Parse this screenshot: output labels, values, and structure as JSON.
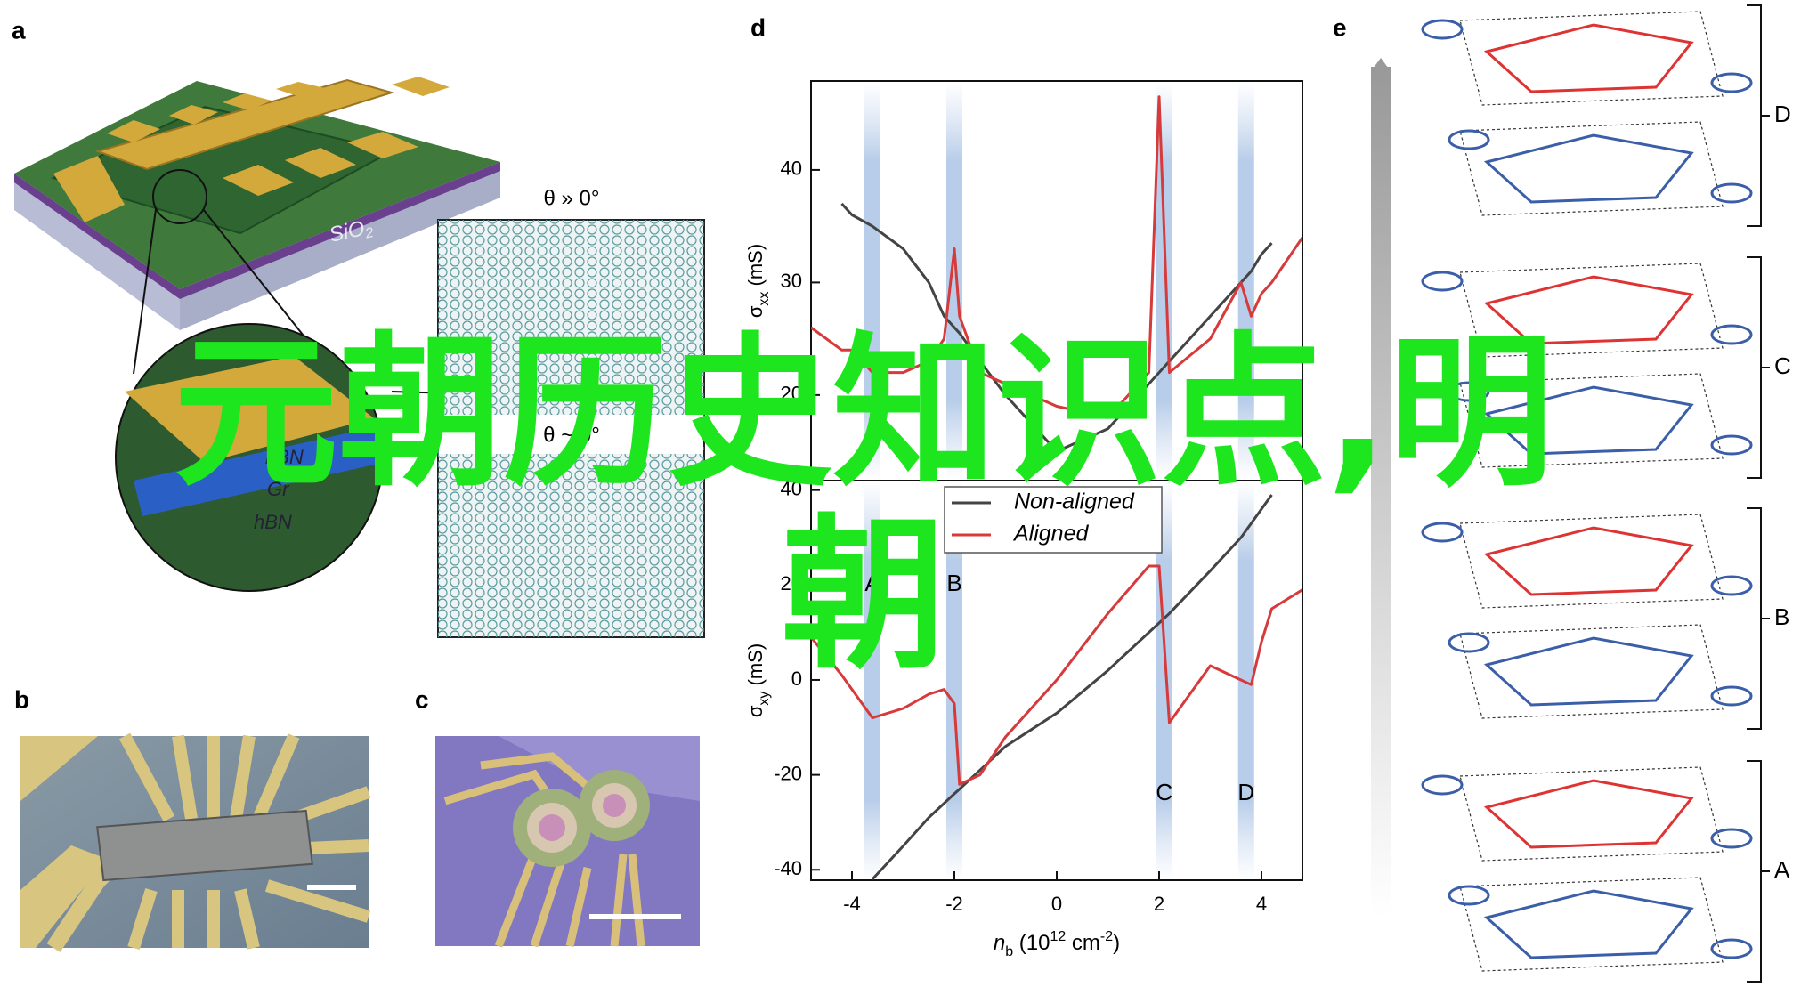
{
  "panel_labels": [
    "a",
    "b",
    "c",
    "d",
    "e"
  ],
  "panel_a": {
    "substrate": {
      "text": "SiO",
      "sub": "2"
    },
    "layers": [
      "hBN",
      "Gr",
      "hBN"
    ],
    "inset_top": "θ » 0°",
    "inset_bottom": "θ ~ 0°"
  },
  "panel_e": {
    "groups": [
      "D",
      "C",
      "B",
      "A"
    ]
  },
  "overlay": "元朝历史知识点,明朝",
  "chart_data": [
    {
      "type": "line",
      "ylabel": [
        {
          "text": "σ",
          "style": "normal"
        },
        {
          "text": "xx",
          "style": "sub"
        },
        {
          "text": " (mS)",
          "style": "normal"
        }
      ],
      "x": [
        -4.8,
        -4.2,
        -4,
        -3.6,
        -3,
        -2.5,
        -2.2,
        -2,
        -1.9,
        -1.5,
        -1,
        0,
        1,
        1.8,
        2,
        2.2,
        3,
        3.6,
        3.8,
        4,
        4.2,
        4.8
      ],
      "series": [
        {
          "name": "Non-aligned",
          "color": "#444444",
          "values": [
            null,
            37,
            36,
            35,
            33,
            30,
            27,
            26,
            25.5,
            23,
            20,
            15,
            17,
            21,
            22,
            23,
            27,
            30,
            31,
            32.5,
            33.5,
            null
          ]
        },
        {
          "name": "Aligned",
          "color": "#d63a3a",
          "values": [
            26,
            24,
            24,
            22,
            22,
            23,
            25,
            33,
            27,
            22,
            21,
            19,
            18,
            22,
            46.5,
            22,
            25,
            30,
            27,
            29,
            30,
            34
          ]
        }
      ],
      "xlim": [
        -4.8,
        4.8
      ],
      "ylim": [
        12.4,
        47.9
      ],
      "yticks": [
        20,
        30,
        40
      ]
    },
    {
      "type": "line",
      "ylabel": [
        {
          "text": "σ",
          "style": "normal"
        },
        {
          "text": "xy",
          "style": "sub"
        },
        {
          "text": " (mS)",
          "style": "normal"
        }
      ],
      "xlabel": [
        {
          "text": "n",
          "style": "italic"
        },
        {
          "text": "b",
          "style": "sub"
        },
        {
          "text": " (10",
          "style": "normal"
        },
        {
          "text": "12",
          "style": "sup"
        },
        {
          "text": " cm",
          "style": "normal"
        },
        {
          "text": "-2",
          "style": "sup"
        },
        {
          "text": ")",
          "style": "normal"
        }
      ],
      "x": [
        -4.8,
        -4.2,
        -4,
        -3.6,
        -3,
        -2.5,
        -2.2,
        -2,
        -1.9,
        -1.5,
        -1,
        0,
        1,
        1.8,
        2,
        2.2,
        3,
        3.6,
        3.8,
        4,
        4.2,
        4.8
      ],
      "series": [
        {
          "name": "Non-aligned",
          "color": "#444444",
          "values": [
            null,
            null,
            null,
            -42,
            -35,
            -29,
            -26,
            -24,
            -23,
            -19,
            -14,
            -7,
            2,
            10,
            12,
            14,
            23,
            30,
            33,
            36,
            39,
            null
          ]
        },
        {
          "name": "Aligned",
          "color": "#d63a3a",
          "values": [
            9,
            1,
            -2,
            -8,
            -6,
            -3,
            -2,
            -5,
            -22,
            -20,
            -12,
            0,
            14,
            24,
            24,
            -9,
            3,
            0,
            -1,
            8,
            15,
            19
          ]
        }
      ],
      "annotations": [
        {
          "label": "A",
          "x": -3.6,
          "y": 20
        },
        {
          "label": "B",
          "x": -2,
          "y": 20
        },
        {
          "label": "C",
          "x": 2.1,
          "y": -24
        },
        {
          "label": "D",
          "x": 3.7,
          "y": -24
        }
      ],
      "xlim": [
        -4.8,
        4.8
      ],
      "ylim": [
        -42.2,
        42
      ],
      "xticks": [
        -4,
        -2,
        0,
        2,
        4
      ],
      "yticks": [
        -40,
        -20,
        0,
        20,
        40
      ],
      "legend": "upper left"
    }
  ]
}
